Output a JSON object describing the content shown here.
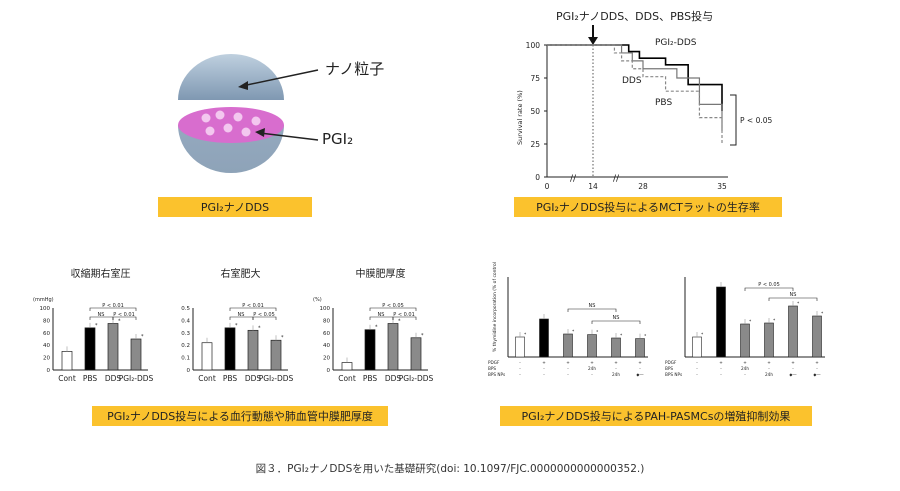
{
  "nano": {
    "label_particle": "ナノ粒子",
    "label_pgi2": "PGI₂",
    "caption": "PGI₂ナノDDS"
  },
  "survival": {
    "top_annotation": "PGI₂ナノDDS、DDS、PBS投与",
    "ylabel": "Survival rate (%)",
    "ticks_y": [
      "100",
      "75",
      "50",
      "25",
      "0"
    ],
    "ticks_x": [
      "0",
      "14",
      "28",
      "35"
    ],
    "series_labels": [
      "PGI₂-DDS",
      "DDS",
      "PBS"
    ],
    "pvalue": "P < 0.05",
    "caption": "PGI₂ナノDDS投与によるMCTラットの生存率"
  },
  "hemo": {
    "caption": "PGI₂ナノDDS投与による血行動態や肺血管中膜肥厚度",
    "categories": [
      "Cont",
      "PBS",
      "DDS",
      "PGI₂-DDS"
    ],
    "charts": [
      {
        "title": "収縮期右室圧",
        "unit": "(mmHg)",
        "ticks": [
          "100",
          "80",
          "60",
          "40",
          "20",
          "0"
        ],
        "annotations": [
          "P < 0.01",
          "NS",
          "P < 0.01"
        ]
      },
      {
        "title": "右室肥大",
        "unit": "",
        "ticks": [
          "0.5",
          "0.4",
          "0.3",
          "0.2",
          "0.1",
          "0"
        ],
        "annotations": [
          "P < 0.01",
          "NS",
          "P < 0.05"
        ]
      },
      {
        "title": "中膜肥厚度",
        "unit": "(%)",
        "ticks": [
          "100",
          "80",
          "60",
          "40",
          "20",
          "0"
        ],
        "annotations": [
          "P < 0.05",
          "NS",
          "P < 0.01"
        ]
      }
    ]
  },
  "prolif": {
    "caption": "PGI₂ナノDDS投与によるPAH-PASMCsの増殖抑制効果",
    "ylabel": "% thymidine incorporation (% of control)",
    "left_annotations": [
      "NS",
      "NS"
    ],
    "right_annotations": [
      "P < 0.05",
      "NS"
    ],
    "row_labels": [
      "PDGF",
      "BPS",
      "BPS NPs"
    ],
    "left_rows": [
      [
        "-",
        "+",
        "+",
        "+",
        "+",
        "+"
      ],
      [
        "-",
        "-",
        "-",
        "24h",
        "-",
        "-"
      ],
      [
        "-",
        "-",
        "-",
        "-",
        "24h",
        "◆—"
      ]
    ],
    "right_rows": [
      [
        "-",
        "+",
        "+",
        "+",
        "+",
        "+"
      ],
      [
        "-",
        "-",
        "24h",
        "-",
        "-",
        "-"
      ],
      [
        "-",
        "-",
        "-",
        "24h",
        "◆—",
        "◆—"
      ]
    ]
  },
  "figure_caption": "図３．PGI₂ナノDDSを用いた基礎研究(doi: 10.1097/FJC.0000000000000352.)",
  "chart_data": [
    {
      "type": "line",
      "title": "",
      "xlabel": "",
      "ylabel": "Survival rate (%)",
      "ylim": [
        0,
        100
      ],
      "series": [
        {
          "name": "PGI₂-DDS",
          "x": [
            0,
            22,
            24,
            27,
            30,
            32,
            35
          ],
          "y": [
            100,
            100,
            95,
            90,
            85,
            70,
            50
          ]
        },
        {
          "name": "DDS",
          "x": [
            0,
            20,
            22,
            25,
            28,
            31,
            33,
            35
          ],
          "y": [
            100,
            100,
            94,
            88,
            82,
            75,
            55,
            35
          ]
        },
        {
          "name": "PBS",
          "x": [
            0,
            18,
            20,
            22,
            25,
            28,
            30,
            33,
            35
          ],
          "y": [
            100,
            100,
            94,
            88,
            82,
            76,
            65,
            45,
            25
          ]
        }
      ]
    },
    {
      "type": "bar",
      "title": "収縮期右室圧",
      "categories": [
        "Cont",
        "PBS",
        "DDS",
        "PGI₂-DDS"
      ],
      "values": [
        30,
        68,
        75,
        50
      ],
      "ylim": [
        0,
        100
      ]
    },
    {
      "type": "bar",
      "title": "右室肥大",
      "categories": [
        "Cont",
        "PBS",
        "DDS",
        "PGI₂-DDS"
      ],
      "values": [
        0.22,
        0.34,
        0.32,
        0.24
      ],
      "ylim": [
        0,
        0.5
      ]
    },
    {
      "type": "bar",
      "title": "中膜肥厚度",
      "categories": [
        "Cont",
        "PBS",
        "DDS",
        "PGI₂-DDS"
      ],
      "values": [
        12,
        65,
        75,
        52
      ],
      "ylim": [
        0,
        100
      ]
    },
    {
      "type": "bar",
      "title": "",
      "values": [
        100,
        190,
        115,
        112,
        95,
        92
      ],
      "ylim": [
        0,
        400
      ]
    },
    {
      "type": "bar",
      "title": "",
      "values": [
        100,
        350,
        165,
        170,
        255,
        205
      ],
      "ylim": [
        0,
        400
      ]
    }
  ],
  "colors": {
    "accent_caption": "#fbc22d",
    "particle_blue": "#8ea7bf",
    "particle_pink": "#d86dce",
    "bar_black": "#000000",
    "bar_gray": "#8a8a8a",
    "bar_white": "#ffffff"
  }
}
